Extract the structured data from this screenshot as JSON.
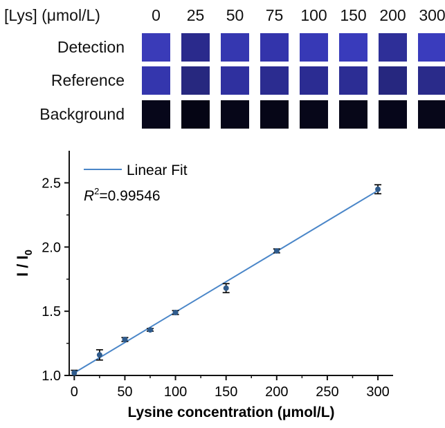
{
  "strip": {
    "header_label": "[Lys] (μmol/L)",
    "concentrations": [
      "0",
      "25",
      "50",
      "75",
      "100",
      "150",
      "200",
      "300"
    ],
    "rows": [
      {
        "label": "Detection",
        "colors": [
          "#3a3bb8",
          "#2a2a8c",
          "#3537b0",
          "#3334ab",
          "#3739b6",
          "#393bbb",
          "#2e2f98",
          "#3a3cbd"
        ]
      },
      {
        "label": "Reference",
        "colors": [
          "#3436ad",
          "#27287f",
          "#2f309f",
          "#2b2c90",
          "#2b2c92",
          "#2c2d94",
          "#26277f",
          "#2a2b8a"
        ]
      },
      {
        "label": "Background",
        "colors": [
          "#07071a",
          "#050514",
          "#060618",
          "#060617",
          "#070719",
          "#070718",
          "#06061a",
          "#070719"
        ]
      }
    ]
  },
  "chart_data": {
    "type": "scatter",
    "xlabel": "Lysine concentration (μmol/L)",
    "ylabel": "I / I0",
    "xlim": [
      -5,
      315
    ],
    "ylim": [
      1.0,
      2.75
    ],
    "xticks": [
      "0",
      "50",
      "100",
      "150",
      "200",
      "250",
      "300"
    ],
    "yticks": [
      "1.0",
      "1.5",
      "2.0",
      "2.5"
    ],
    "points": [
      {
        "x": 0,
        "y": 1.02,
        "err": 0.02
      },
      {
        "x": 25,
        "y": 1.16,
        "err": 0.04
      },
      {
        "x": 50,
        "y": 1.28,
        "err": 0.015
      },
      {
        "x": 75,
        "y": 1.355,
        "err": 0.01
      },
      {
        "x": 100,
        "y": 1.49,
        "err": 0.015
      },
      {
        "x": 150,
        "y": 1.68,
        "err": 0.035
      },
      {
        "x": 200,
        "y": 1.97,
        "err": 0.015
      },
      {
        "x": 300,
        "y": 2.45,
        "err": 0.035
      }
    ],
    "fit": {
      "x": [
        0,
        300
      ],
      "y": [
        1.02,
        2.44
      ]
    },
    "legend": {
      "fit_label": "Linear Fit",
      "r2_label": "R",
      "r2_sup": "2",
      "r2_value": "=0.99546",
      "position": "top-left"
    },
    "colors": {
      "line": "#4a86c8",
      "marker": "#2f5b8c",
      "axis": "#111111"
    }
  }
}
